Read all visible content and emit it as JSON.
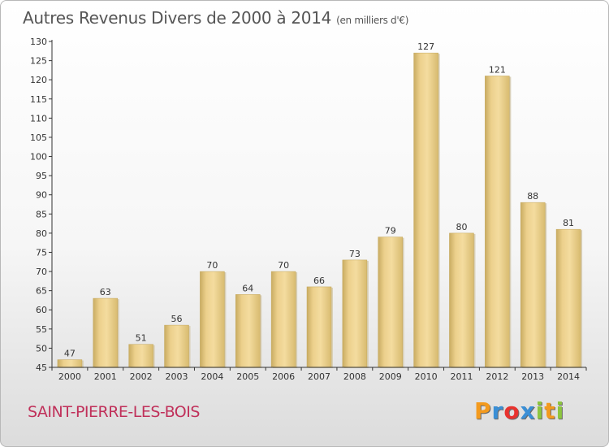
{
  "chart_data": {
    "type": "bar",
    "title": "Autres Revenus Divers de 2000 à 2014",
    "subtitle": "(en milliers d'€)",
    "categories": [
      "2000",
      "2001",
      "2002",
      "2003",
      "2004",
      "2005",
      "2006",
      "2007",
      "2008",
      "2009",
      "2010",
      "2011",
      "2012",
      "2013",
      "2014"
    ],
    "values": [
      47,
      63,
      51,
      56,
      70,
      64,
      70,
      66,
      73,
      79,
      127,
      80,
      121,
      88,
      81
    ],
    "ylim": [
      45,
      130
    ],
    "yticks": [
      45,
      50,
      55,
      60,
      65,
      70,
      75,
      80,
      85,
      90,
      95,
      100,
      105,
      110,
      115,
      120,
      125,
      130
    ],
    "xlabel": "",
    "ylabel": "",
    "grid": false,
    "bar_color": "#e8c97a"
  },
  "place_name": "SAINT-PIERRE-LES-BOIS",
  "brand": {
    "letters": [
      "P",
      "r",
      "o",
      "x",
      "i",
      "t",
      "i"
    ],
    "colors": [
      "#f39a1e",
      "#3a8fd6",
      "#e8332e",
      "#3a8fd6",
      "#8dc63f",
      "#f39a1e",
      "#8dc63f"
    ]
  }
}
